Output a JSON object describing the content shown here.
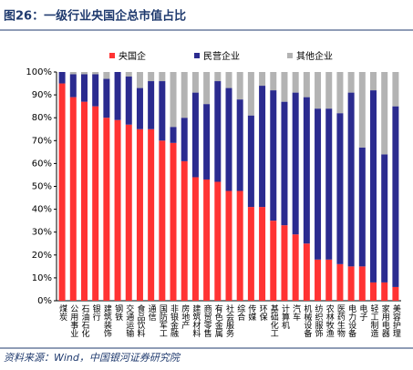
{
  "chart_data": {
    "type": "stacked_bar",
    "title": "图26：一级行业央国企总市值占比",
    "source": "资料来源：Wind，中国银河证券研究院",
    "categories": [
      "煤炭",
      "公用事业",
      "石油石化",
      "银行",
      "建筑装饰",
      "钢铁",
      "交通运输",
      "食品饮料",
      "通信",
      "国防军工",
      "非银金融",
      "房地产",
      "建筑材料",
      "商贸零售",
      "有色金属",
      "社会服务",
      "综合",
      "传媒",
      "环保",
      "基础化工",
      "计算机",
      "汽车",
      "机械设备",
      "纺织服饰",
      "农林牧渔",
      "医药生物",
      "电力设备",
      "电子",
      "轻工制造",
      "家用电器",
      "美容护理"
    ],
    "series": [
      {
        "name": "央国企",
        "color": "#ff3333",
        "values": [
          95,
          89,
          87,
          85,
          80,
          79,
          77,
          75,
          75,
          70,
          69,
          61,
          54,
          53,
          52,
          48,
          48,
          41,
          41,
          35,
          33,
          29,
          25,
          18,
          18,
          16,
          15,
          15,
          8,
          8,
          6
        ]
      },
      {
        "name": "民营企业",
        "color": "#2b2b8f",
        "values": [
          5,
          10,
          12,
          14,
          17,
          21,
          21,
          18,
          21,
          26,
          7,
          19,
          37,
          33,
          44,
          45,
          40,
          40,
          53,
          57,
          54,
          62,
          64,
          66,
          66,
          66,
          76,
          52,
          84,
          56,
          79
        ]
      },
      {
        "name": "其他企业",
        "color": "#b3b3b3",
        "values": [
          0,
          1,
          1,
          1,
          3,
          0,
          2,
          7,
          4,
          4,
          24,
          20,
          9,
          14,
          4,
          7,
          12,
          19,
          6,
          8,
          13,
          9,
          11,
          16,
          16,
          18,
          9,
          33,
          8,
          36,
          15
        ]
      }
    ],
    "ylim": [
      0,
      100
    ],
    "yticks": [
      {
        "value": 0,
        "label": "0%"
      },
      {
        "value": 10,
        "label": "10%"
      },
      {
        "value": 20,
        "label": "20%"
      },
      {
        "value": 30,
        "label": "30%"
      },
      {
        "value": 40,
        "label": "40%"
      },
      {
        "value": 50,
        "label": "50%"
      },
      {
        "value": 60,
        "label": "60%"
      },
      {
        "value": 70,
        "label": "70%"
      },
      {
        "value": 80,
        "label": "80%"
      },
      {
        "value": 90,
        "label": "90%"
      },
      {
        "value": 100,
        "label": "100%"
      }
    ],
    "legend": "top"
  }
}
